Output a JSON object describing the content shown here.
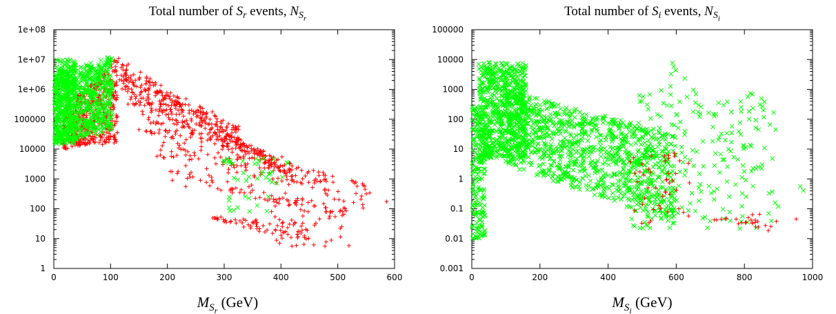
{
  "colors": {
    "red": "#ff0000",
    "green": "#00ff00",
    "axis": "#000000"
  },
  "chart_data": [
    {
      "type": "scatter",
      "title_parts": {
        "prefix": "Total number of ",
        "sym": "S",
        "sub": "r",
        "middle": " events, ",
        "sym2": "N",
        "sub2": "S",
        "subsub2": "r"
      },
      "xlabel_parts": {
        "sym": "M",
        "sub": "S",
        "subsub": "r",
        "unit": " (GeV)"
      },
      "xlim": [
        0,
        600
      ],
      "ylim": [
        1,
        100000000
      ],
      "yscale": "log",
      "xticks": [
        "0",
        "100",
        "200",
        "300",
        "400",
        "500",
        "600"
      ],
      "yticks": [
        "1",
        "10",
        "100",
        "1000",
        "10000",
        "100000",
        "1e+06",
        "1e+07",
        "1e+08"
      ],
      "grid": false,
      "series": [
        {
          "color": "red",
          "marker": "plus",
          "clusters": [
            {
              "shape": "band",
              "x": [
                15,
                112
              ],
              "ylo": [
                10000,
                15000
              ],
              "yhi": [
                200000,
                12000000
              ],
              "n": 500
            },
            {
              "shape": "fan",
              "x": [
                110,
                330
              ],
              "ystart": [
                2000000,
                12000000
              ],
              "yend": [
                20000,
                50000
              ],
              "n": 140
            },
            {
              "shape": "fan",
              "x": [
                115,
                380
              ],
              "ystart": [
                1000000,
                6000000
              ],
              "yend": [
                4000,
                6000
              ],
              "n": 140
            },
            {
              "shape": "fan",
              "x": [
                130,
                420
              ],
              "ystart": [
                300000,
                1000000
              ],
              "yend": [
                1000,
                3000
              ],
              "n": 130
            },
            {
              "shape": "fan",
              "x": [
                150,
                480
              ],
              "ystart": [
                40000,
                200000
              ],
              "yend": [
                500,
                2000
              ],
              "n": 120
            },
            {
              "shape": "fan",
              "x": [
                180,
                550
              ],
              "ystart": [
                5000,
                30000
              ],
              "yend": [
                100,
                800
              ],
              "n": 110
            },
            {
              "shape": "fan",
              "x": [
                200,
                520
              ],
              "ystart": [
                800,
                3000
              ],
              "yend": [
                40,
                100
              ],
              "n": 90
            },
            {
              "shape": "fan",
              "x": [
                280,
                450
              ],
              "ystart": [
                40,
                60
              ],
              "yend": [
                8,
                30
              ],
              "n": 60
            },
            {
              "shape": "blob",
              "x": [
                380,
                520
              ],
              "y": [
                5,
                80
              ],
              "n": 35
            },
            {
              "shape": "blob",
              "x": [
                540,
                590
              ],
              "y": [
                60,
                800
              ],
              "n": 3
            }
          ]
        },
        {
          "color": "green",
          "marker": "x",
          "clusters": [
            {
              "shape": "band",
              "x": [
                1,
                103
              ],
              "ylo": [
                12000,
                40000
              ],
              "yhi": [
                3000000,
                15000000
              ],
              "n": 700
            },
            {
              "shape": "blob",
              "x": [
                2,
                40
              ],
              "y": [
                15000,
                10000000
              ],
              "n": 300
            },
            {
              "shape": "blob",
              "x": [
                290,
                420
              ],
              "y": [
                3000,
                5000
              ],
              "n": 16
            },
            {
              "shape": "blob",
              "x": [
                310,
                410
              ],
              "y": [
                700,
                2000
              ],
              "n": 16
            },
            {
              "shape": "blob",
              "x": [
                300,
                380
              ],
              "y": [
                80,
                300
              ],
              "n": 12
            }
          ]
        }
      ]
    },
    {
      "type": "scatter",
      "title_parts": {
        "prefix": "Total number of ",
        "sym": "S",
        "sub": "i",
        "middle": " events, ",
        "sym2": "N",
        "sub2": "S",
        "subsub2": "i"
      },
      "xlabel_parts": {
        "sym": "M",
        "sub": "S",
        "subsub": "i",
        "unit": " (GeV)"
      },
      "xlim": [
        0,
        1000
      ],
      "ylim": [
        0.001,
        100000
      ],
      "yscale": "log",
      "xticks": [
        "0",
        "200",
        "400",
        "600",
        "800",
        "1000"
      ],
      "yticks": [
        "0.001",
        "0.01",
        "0.1",
        "1",
        "10",
        "100",
        "1000",
        "10000",
        "100000"
      ],
      "grid": false,
      "series": [
        {
          "color": "green",
          "marker": "x",
          "clusters": [
            {
              "shape": "blob",
              "x": [
                0,
                40
              ],
              "y": [
                0.01,
                300
              ],
              "n": 200
            },
            {
              "shape": "blob",
              "x": [
                20,
                160
              ],
              "y": [
                5,
                8000
              ],
              "n": 700
            },
            {
              "shape": "band",
              "x": [
                100,
                600
              ],
              "ylo": [
                3,
                0.03
              ],
              "yhi": [
                1000,
                30
              ],
              "n": 1100
            },
            {
              "shape": "blob",
              "x": [
                450,
                900
              ],
              "y": [
                0.02,
                1000
              ],
              "n": 220
            },
            {
              "shape": "blob",
              "x": [
                580,
                640
              ],
              "y": [
                1000,
                8000
              ],
              "n": 6
            },
            {
              "shape": "blob",
              "x": [
                950,
                975
              ],
              "y": [
                0.4,
                0.6
              ],
              "n": 2
            }
          ]
        },
        {
          "color": "red",
          "marker": "plus",
          "clusters": [
            {
              "shape": "blob",
              "x": [
                450,
                640
              ],
              "y": [
                0.03,
                8
              ],
              "n": 45
            },
            {
              "shape": "fan",
              "x": [
                710,
                900
              ],
              "ystart": [
                0.04,
                0.06
              ],
              "yend": [
                0.015,
                0.06
              ],
              "n": 25
            },
            {
              "shape": "blob",
              "x": [
                950,
                985
              ],
              "y": [
                0.04,
                0.06
              ],
              "n": 1
            }
          ]
        }
      ]
    }
  ]
}
